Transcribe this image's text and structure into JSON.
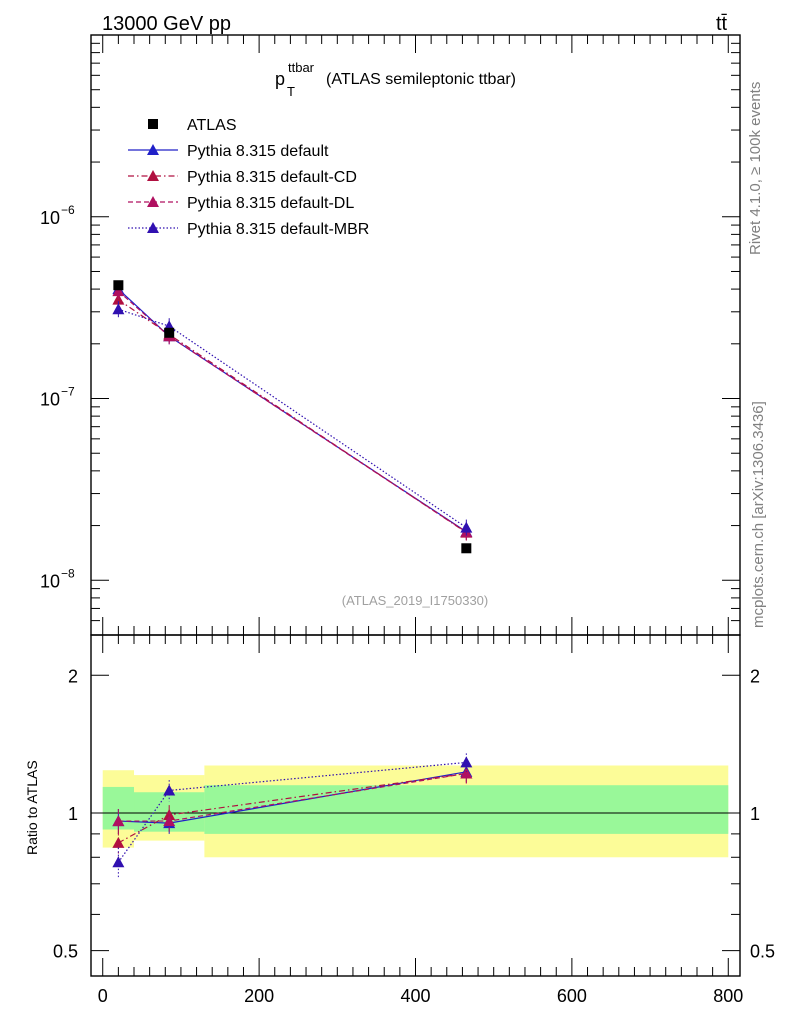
{
  "header": {
    "left": "13000 GeV pp",
    "right": "tt̄",
    "right_side_top": "Rivet 4.1.0, ≥ 100k events",
    "right_side_bottom": "mcplots.cern.ch [arXiv:1306.3436]",
    "watermark": "(ATLAS_2019_I1750330)"
  },
  "chart_data": {
    "type": "line",
    "title": {
      "main": "p",
      "sup": "ttbar",
      "sub": "T",
      "suffix": "(ATLAS semileptonic ttbar)"
    },
    "x": [
      20,
      85,
      465
    ],
    "xlim": [
      -15,
      815
    ],
    "xticks": [
      0,
      200,
      400,
      600,
      800
    ],
    "xtick_labels": [
      "0",
      "200",
      "400",
      "600",
      "800"
    ],
    "yscale": "log",
    "ylim": [
      5e-09,
      1e-05
    ],
    "yticks_major": [
      {
        "value": 1e-06,
        "base": "10",
        "exp": "−6"
      },
      {
        "value": 1e-07,
        "base": "10",
        "exp": "−7"
      },
      {
        "value": 1e-08,
        "base": "10",
        "exp": "−8"
      }
    ],
    "data": {
      "name": "ATLAS",
      "values": [
        4.2e-07,
        2.3e-07,
        1.5e-08
      ],
      "bins": [
        [
          0,
          40
        ],
        [
          40,
          130
        ],
        [
          130,
          800
        ]
      ]
    },
    "series": [
      {
        "name": "Pythia 8.315 default",
        "color": "#2020c8",
        "dash": "solid",
        "values": [
          4e-07,
          2.2e-07,
          1.85e-08
        ],
        "ratio": [
          0.96,
          0.95,
          1.23
        ],
        "ratio_err": [
          0.06,
          0.05,
          0.06
        ]
      },
      {
        "name": "Pythia 8.315 default-CD",
        "color": "#b01040",
        "dash": "dashdot",
        "values": [
          3.5e-07,
          2.25e-07,
          1.83e-08
        ],
        "ratio": [
          0.86,
          0.99,
          1.22
        ],
        "ratio_err": [
          0.06,
          0.05,
          0.06
        ]
      },
      {
        "name": "Pythia 8.315 default-DL",
        "color": "#b01060",
        "dash": "dash",
        "values": [
          3.9e-07,
          2.2e-07,
          1.84e-08
        ],
        "ratio": [
          0.96,
          0.96,
          1.22
        ],
        "ratio_err": [
          0.06,
          0.05,
          0.06
        ]
      },
      {
        "name": "Pythia 8.315 default-MBR",
        "color": "#3010b0",
        "dash": "dotted",
        "values": [
          3.1e-07,
          2.5e-07,
          1.95e-08
        ],
        "ratio": [
          0.78,
          1.12,
          1.29
        ],
        "ratio_err": [
          0.06,
          0.06,
          0.06
        ]
      }
    ],
    "ratio": {
      "ylabel": "Ratio to ATLAS",
      "ylim": [
        0.44,
        2.45
      ],
      "yticks": [
        0.5,
        1,
        2
      ],
      "ytick_labels": [
        "0.5",
        "1",
        "2"
      ],
      "bands": [
        {
          "x0": 0,
          "x1": 40,
          "inner": [
            0.92,
            1.14
          ],
          "outer": [
            0.84,
            1.24
          ]
        },
        {
          "x0": 40,
          "x1": 130,
          "inner": [
            0.91,
            1.11
          ],
          "outer": [
            0.87,
            1.21
          ]
        },
        {
          "x0": 130,
          "x1": 800,
          "inner": [
            0.9,
            1.15
          ],
          "outer": [
            0.8,
            1.27
          ]
        }
      ]
    },
    "colors": {
      "inner_band": "#99f899",
      "outer_band": "#fcfc98",
      "data": "#000000"
    }
  }
}
